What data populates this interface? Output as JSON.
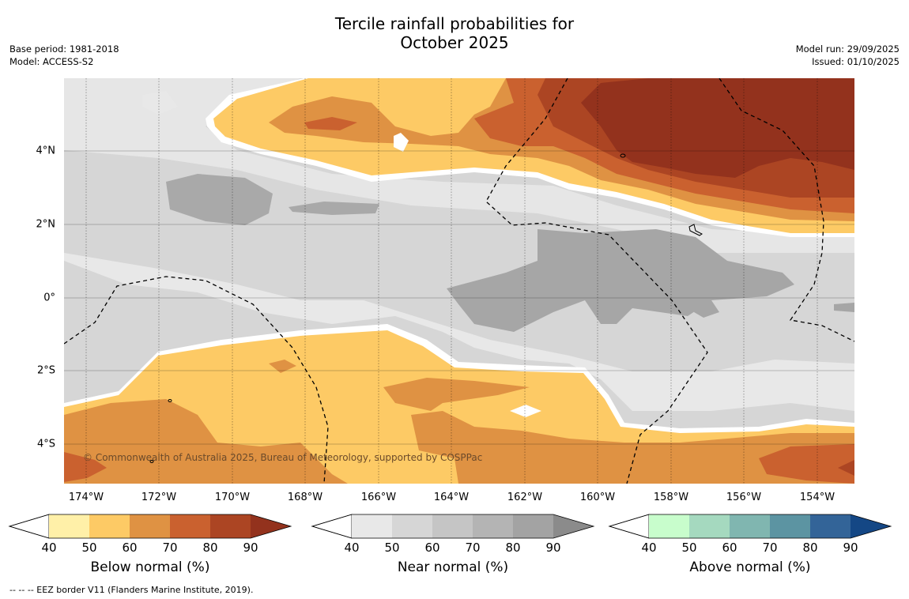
{
  "title": {
    "line1": "Tercile rainfall probabilities for",
    "line2": "October 2025"
  },
  "meta": {
    "base_period": "Base period: 1981-2018",
    "model": "Model: ACCESS-S2",
    "model_run": "Model run: 29/09/2025",
    "issued": "Issued: 01/10/2025"
  },
  "map": {
    "lon_labels": [
      "174°W",
      "172°W",
      "170°W",
      "168°W",
      "166°W",
      "164°W",
      "162°W",
      "160°W",
      "158°W",
      "156°W",
      "154°W"
    ],
    "lat_labels": [
      "4°N",
      "2°N",
      "0°",
      "2°S",
      "4°S"
    ],
    "copyright": "© Commonwealth of Australia 2025, Bureau of Meteorology, supported by COSPPac"
  },
  "colorbars": [
    {
      "label": "Below normal (%)",
      "ticks": [
        "40",
        "50",
        "60",
        "70",
        "80",
        "90"
      ],
      "colors": [
        "#fff0a8",
        "#fdca65",
        "#df9243",
        "#ca612f",
        "#ac4523",
        "#93321d"
      ]
    },
    {
      "label": "Near normal (%)",
      "ticks": [
        "40",
        "50",
        "60",
        "70",
        "80",
        "90"
      ],
      "colors": [
        "#e8e8e8",
        "#d6d6d6",
        "#c5c5c5",
        "#b4b4b4",
        "#a3a3a3",
        "#8b8b8b"
      ]
    },
    {
      "label": "Above normal (%)",
      "ticks": [
        "40",
        "50",
        "60",
        "70",
        "80",
        "90"
      ],
      "colors": [
        "#c8fdcc",
        "#a5d9bf",
        "#80b6b0",
        "#5c94a2",
        "#336498",
        "#144785"
      ]
    }
  ],
  "footer": {
    "legend_note": "--  --  -- EEZ border V11 (Flanders Marine Institute, 2019)."
  }
}
